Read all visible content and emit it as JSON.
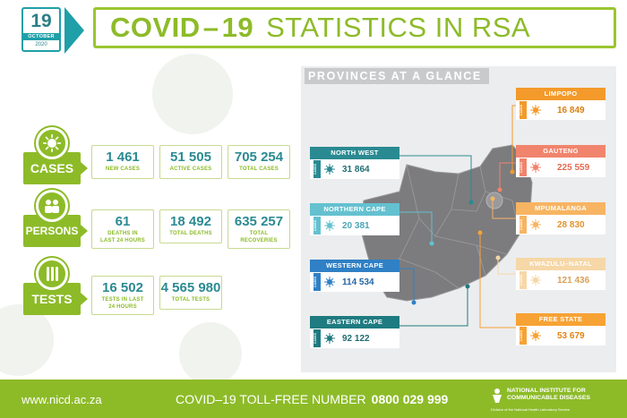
{
  "header": {
    "date": {
      "day": "19",
      "month": "OCTOBER",
      "year": "2020"
    },
    "title_bold": "COVID – 19",
    "title_light": "STATISTICS IN RSA"
  },
  "stats": {
    "cases": {
      "label": "CASES",
      "icon": "virus-icon",
      "items": [
        {
          "value": "1 461",
          "label": "NEW CASES"
        },
        {
          "value": "51 505",
          "label": "ACTIVE CASES"
        },
        {
          "value": "705 254",
          "label": "TOTAL CASES"
        }
      ]
    },
    "persons": {
      "label": "PERSONS",
      "icon": "people-icon",
      "items": [
        {
          "value": "61",
          "label_line1": "DEATHS IN",
          "label_line2": "LAST 24 HOURS"
        },
        {
          "value": "18 492",
          "label_line1": "TOTAL DEATHS",
          "label_line2": ""
        },
        {
          "value": "635 257",
          "label_line1": "TOTAL",
          "label_line2": "RECOVERIES"
        }
      ]
    },
    "tests": {
      "label": "TESTS",
      "icon": "test-tubes-icon",
      "items": [
        {
          "value": "16 502",
          "label_line1": "TESTS IN LAST",
          "label_line2": "24 HOURS"
        },
        {
          "value": "4 565 980",
          "label_line1": "TOTAL TESTS",
          "label_line2": ""
        }
      ]
    }
  },
  "provinces": {
    "header": "PROVINCES AT A GLANCE",
    "cases_tag": "CASES",
    "north_west": {
      "name": "NORTH WEST",
      "value": "31 864",
      "color": "#2a8a92"
    },
    "northern_cape": {
      "name": "NORTHERN CAPE",
      "value": "20 381",
      "color": "#64c1d0"
    },
    "western_cape": {
      "name": "WESTERN CAPE",
      "value": "114 534",
      "color": "#2f80c5"
    },
    "eastern_cape": {
      "name": "EASTERN CAPE",
      "value": "92 122",
      "color": "#1e7b80"
    },
    "limpopo": {
      "name": "LIMPOPO",
      "value": "16 849",
      "color": "#f39a2a"
    },
    "gauteng": {
      "name": "GAUTENG",
      "value": "225 559",
      "color": "#f1846d"
    },
    "mpumalanga": {
      "name": "MPUMALANGA",
      "value": "28 830",
      "color": "#f7b462"
    },
    "kwazulu_natal": {
      "name": "KWAZULU–NATAL",
      "value": "121 436",
      "color": "#f6d7a7"
    },
    "free_state": {
      "name": "FREE STATE",
      "value": "53 679",
      "color": "#f7a234"
    }
  },
  "footer": {
    "url": "www.nicd.ac.za",
    "toll_label": "COVID–19 TOLL-FREE NUMBER",
    "toll_number": "0800 029 999",
    "org_line1": "NATIONAL INSTITUTE FOR",
    "org_line2": "COMMUNICABLE DISEASES",
    "org_division": "Division of the National Health Laboratory Service"
  }
}
